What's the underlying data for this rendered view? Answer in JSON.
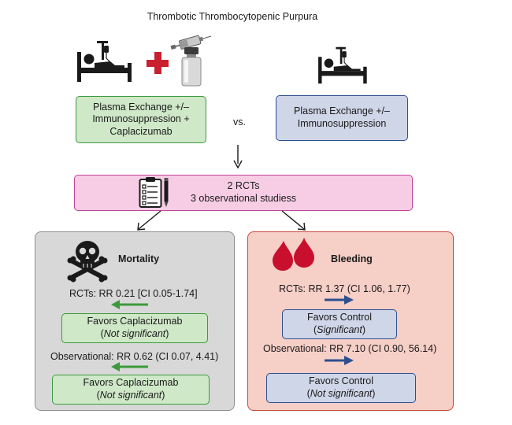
{
  "title": "Thrombotic Thrombocytopenic Purpura",
  "intervention": {
    "line1": "Plasma Exchange +/–",
    "line2": "Immunosuppression +",
    "line3": "Caplacizumab"
  },
  "vs_label": "vs.",
  "comparator": {
    "line1": "Plasma Exchange +/–",
    "line2": "Immunosuppression"
  },
  "studies": {
    "line1": "2 RCTs",
    "line2": "3 observational studiess"
  },
  "mortality": {
    "heading": "Mortality",
    "rct_result": "RCTs: RR 0.21 [CI 0.05-1.74]",
    "rct_favors": "Favors Caplacizumab",
    "rct_significance": "Not significant",
    "obs_result": "Observational: RR 0.62 (CI 0.07, 4.41)",
    "obs_favors": "Favors Caplacizumab",
    "obs_significance": "Not significant"
  },
  "bleeding": {
    "heading": "Bleeding",
    "rct_result": "RCTs: RR 1.37 (CI 1.06, 1.77)",
    "rct_favors": "Favors Control",
    "rct_significance": "Significant",
    "obs_result": "Observational: RR 7.10 (CI 0.90, 56.14)",
    "obs_favors": "Favors Control",
    "obs_significance": "Not significant"
  },
  "icons": [
    "hospital-bed-icon",
    "plus-icon",
    "syringe-icon",
    "vial-icon",
    "clipboard-icon",
    "pencil-icon",
    "skull-crossbones-icon",
    "blood-drops-icon",
    "arrow-left-icon",
    "arrow-right-icon"
  ],
  "colors": {
    "intervention_fill": "#cfe8c8",
    "intervention_border": "#3c9a3c",
    "comparator_fill": "#cfd6e8",
    "comparator_border": "#2d4f8f",
    "studies_fill": "#f7cde6",
    "studies_border": "#c0459a",
    "mortality_panel": "#d8d8d8",
    "bleeding_panel": "#f6cfc7",
    "plus_red": "#c8202f",
    "blood_red": "#c8102e",
    "arrow_green": "#3c9a3c",
    "arrow_blue": "#2d4f8f"
  }
}
